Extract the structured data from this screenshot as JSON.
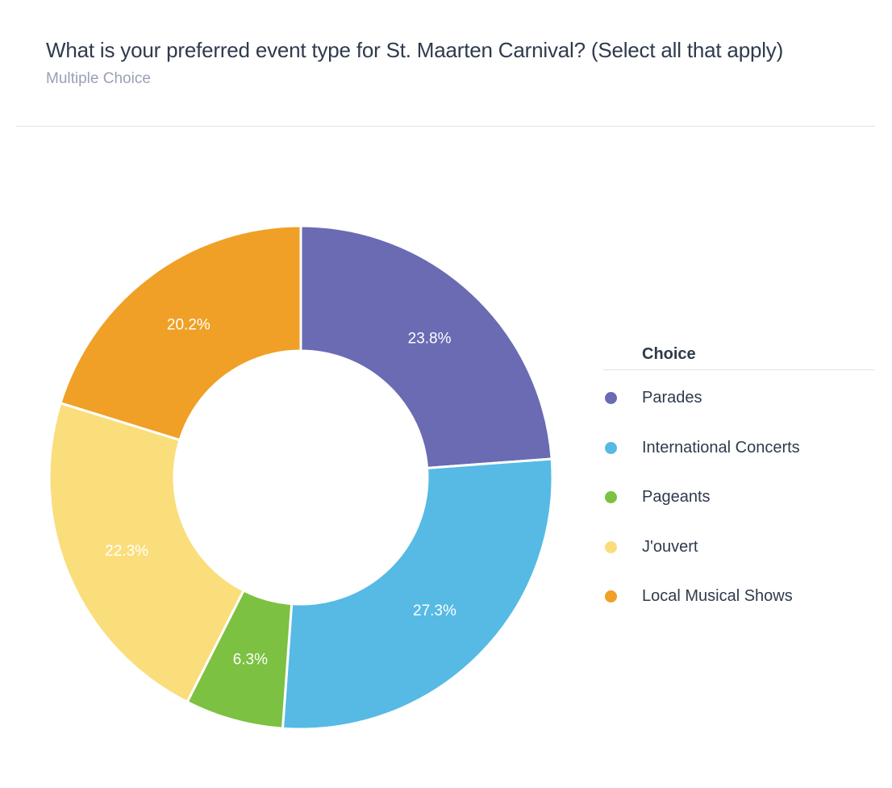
{
  "question": {
    "title": "What is your preferred event type for St. Maarten Carnival? (Select all that apply)",
    "type_label": "Multiple Choice"
  },
  "legend": {
    "header": "Choice"
  },
  "chart_data": {
    "type": "pie",
    "variant": "donut",
    "categories": [
      "Parades",
      "International Concerts",
      "Pageants",
      "J'ouvert",
      "Local Musical Shows"
    ],
    "values": [
      23.8,
      27.3,
      6.3,
      22.3,
      20.2
    ],
    "value_labels": [
      "23.8%",
      "27.3%",
      "6.3%",
      "22.3%",
      "20.2%"
    ],
    "colors": [
      "#6a6bb3",
      "#56bae4",
      "#7cc142",
      "#fade7c",
      "#f0a026"
    ],
    "unit": "%",
    "legend_position": "right",
    "legend_title": "Choice"
  }
}
